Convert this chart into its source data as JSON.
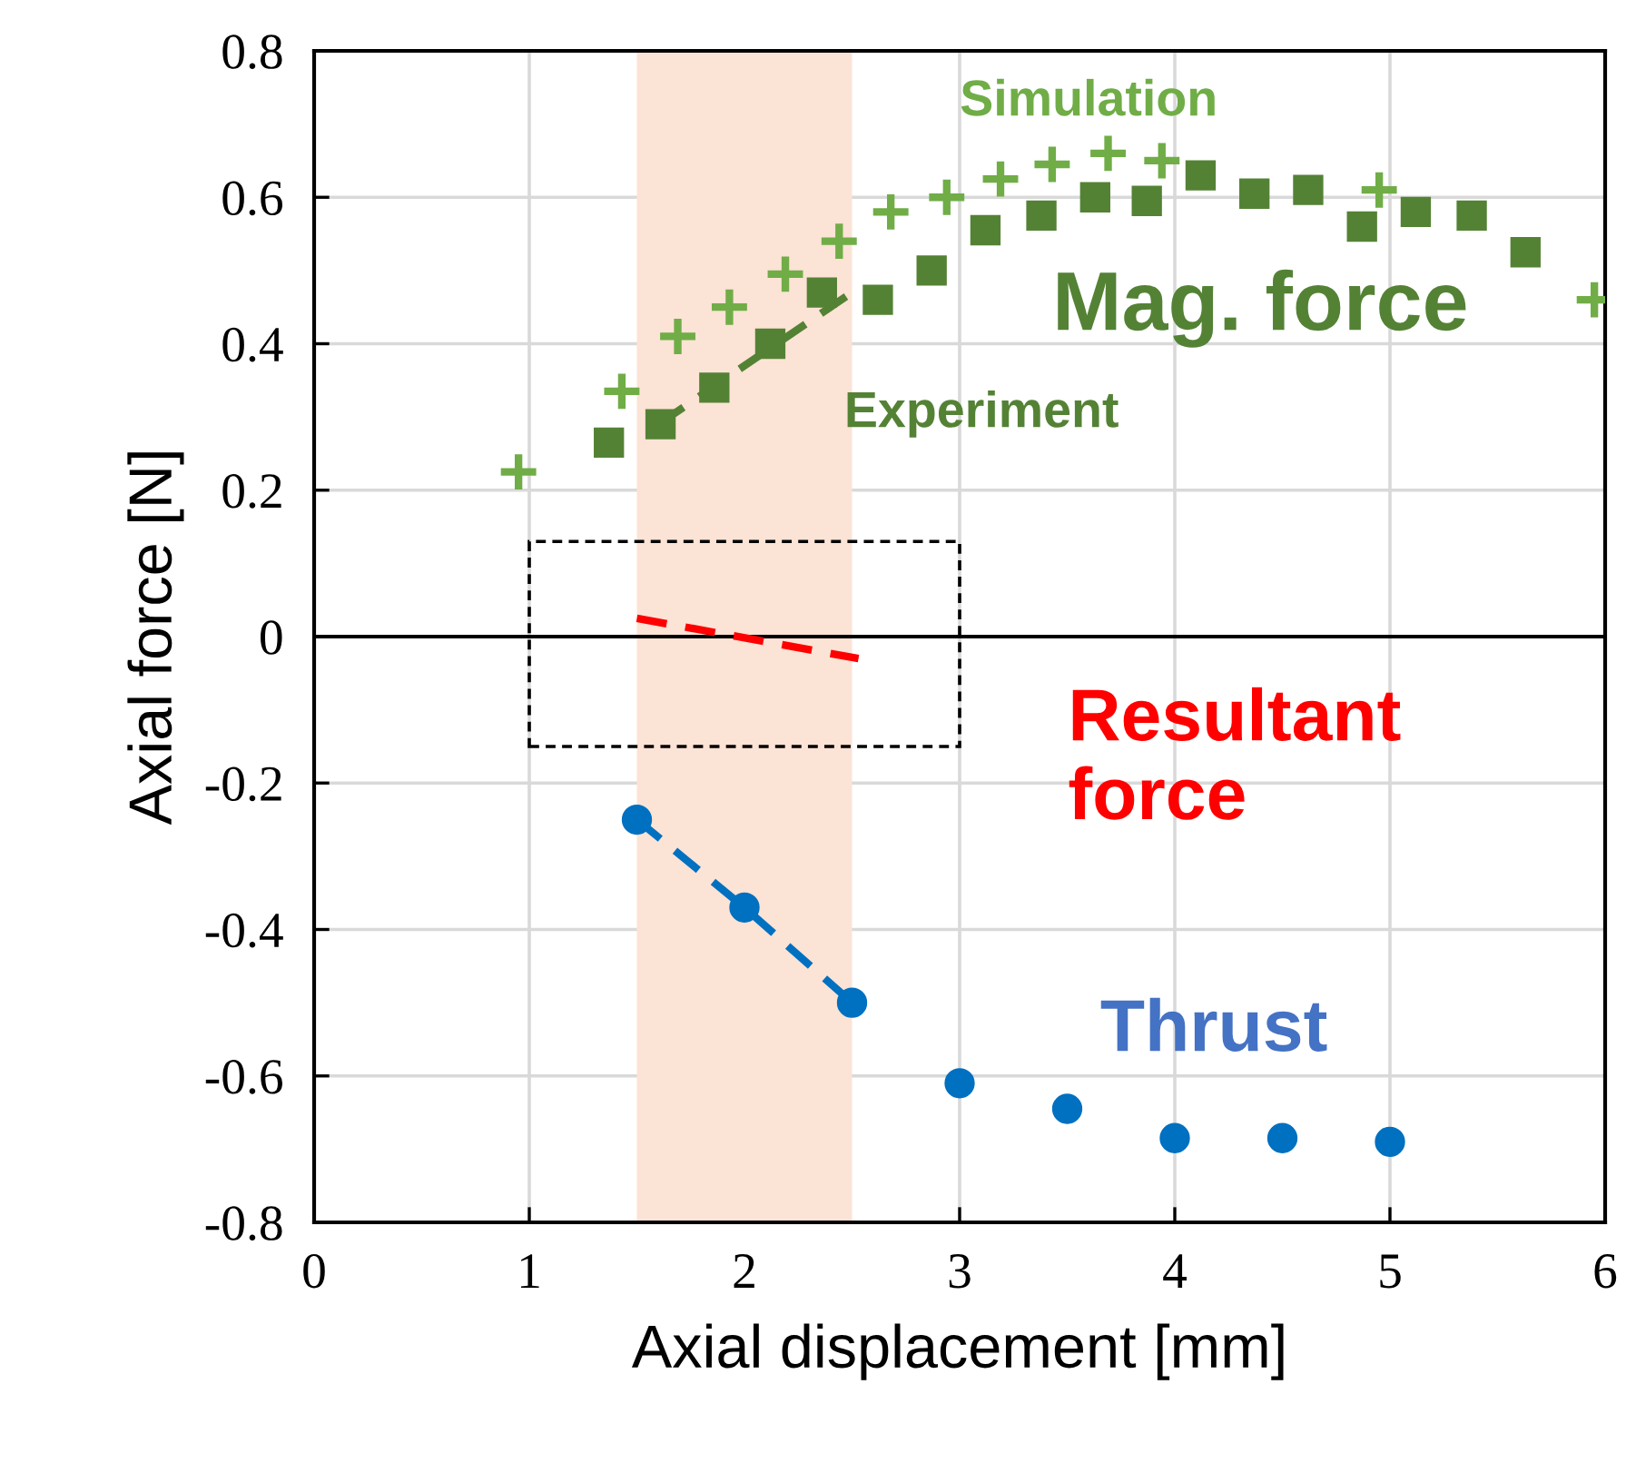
{
  "chart_data": {
    "type": "scatter",
    "xlabel": "Axial displacement [mm]",
    "ylabel": "Axial force [N]",
    "xlim": [
      0,
      6
    ],
    "xticks": [
      0,
      1,
      2,
      3,
      4,
      5,
      6
    ],
    "ylim": [
      -0.8,
      0.8
    ],
    "yticks": [
      -0.8,
      -0.6,
      -0.4,
      -0.2,
      0,
      0.2,
      0.4,
      0.6,
      0.8
    ],
    "grid": true,
    "legend": false,
    "series": [
      {
        "marker": "cross",
        "color": "#70ad47",
        "x": [
          0.95,
          1.43,
          1.69,
          1.93,
          2.19,
          2.44,
          2.68,
          2.94,
          3.19,
          3.43,
          3.69,
          3.94,
          4.95,
          5.95
        ],
        "values": [
          0.225,
          0.335,
          0.41,
          0.45,
          0.495,
          0.54,
          0.58,
          0.6,
          0.625,
          0.645,
          0.66,
          0.65,
          0.61,
          0.46
        ]
      },
      {
        "marker": "square",
        "color": "#548235",
        "x": [
          1.37,
          1.61,
          1.86,
          2.12,
          2.36,
          2.62,
          2.87,
          3.12,
          3.38,
          3.63,
          3.87,
          4.12,
          4.37,
          4.62,
          4.87,
          5.12,
          5.38,
          5.63
        ],
        "values": [
          0.265,
          0.29,
          0.34,
          0.4,
          0.47,
          0.46,
          0.5,
          0.555,
          0.575,
          0.6,
          0.595,
          0.63,
          0.605,
          0.61,
          0.56,
          0.58,
          0.575,
          0.525
        ]
      },
      {
        "type": "line",
        "marker": "none",
        "line_style": "dashed",
        "color": "#548235",
        "x": [
          1.6,
          2.5
        ],
        "values": [
          0.29,
          0.47
        ]
      },
      {
        "type": "line",
        "marker": "none",
        "line_style": "dashed",
        "color": "#ff0000",
        "x": [
          1.5,
          2.53
        ],
        "values": [
          0.025,
          -0.03
        ]
      },
      {
        "type": "line",
        "marker": "none",
        "line_style": "dashed",
        "color": "#0070c0",
        "x": [
          1.5,
          2.0,
          2.5
        ],
        "values": [
          -0.25,
          -0.37,
          -0.5
        ]
      },
      {
        "marker": "circle",
        "color": "#0070c0",
        "x": [
          1.5,
          2.0,
          2.5,
          3.0,
          3.5,
          4.0,
          4.5,
          5.0
        ],
        "values": [
          -0.25,
          -0.37,
          -0.5,
          -0.61,
          -0.645,
          -0.685,
          -0.685,
          -0.69
        ]
      }
    ],
    "ref_lines": [
      {
        "axis": "y",
        "value": 0,
        "color": "#000000",
        "line_style": "solid"
      }
    ],
    "bands": [
      {
        "axis": "x",
        "from": 1.5,
        "to": 2.5,
        "color": "#fbe3d5"
      }
    ],
    "annotations": [
      "Simulation",
      "Experiment",
      "Mag. force",
      "Resultant\nforce",
      "Thrust"
    ]
  }
}
